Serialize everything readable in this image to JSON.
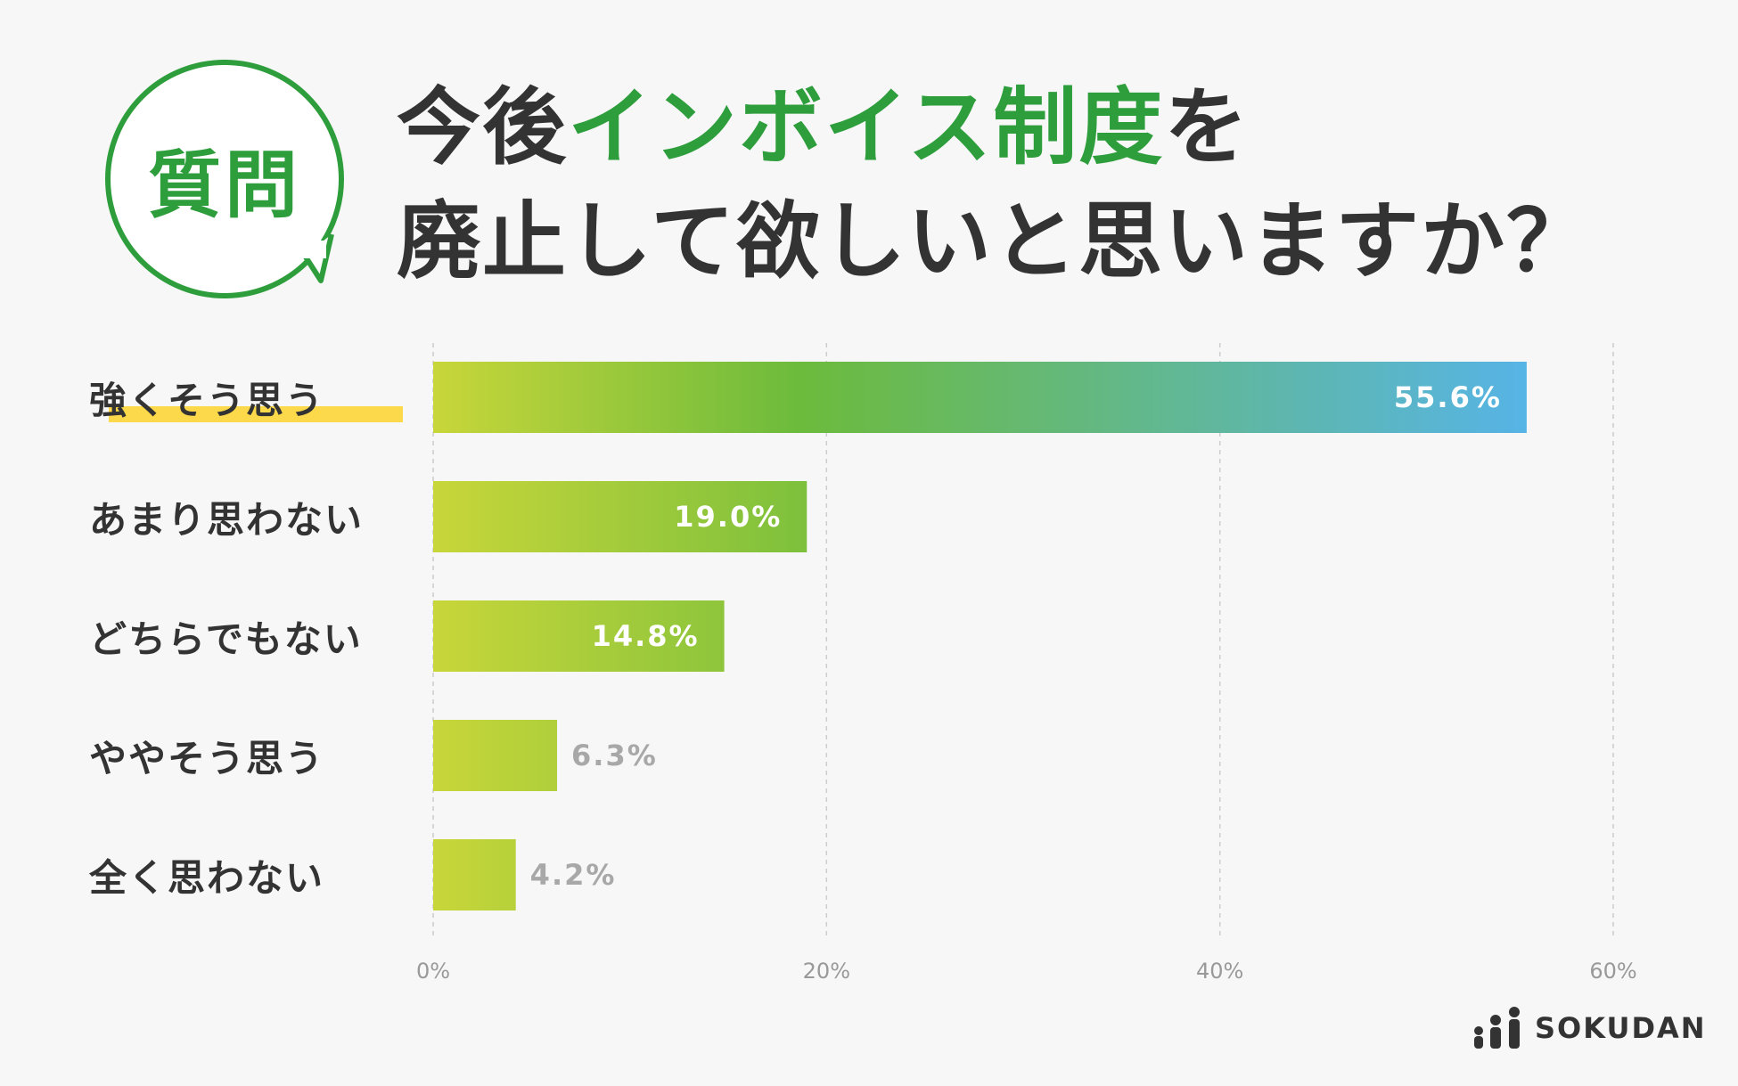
{
  "badge": {
    "label": "質問"
  },
  "title": {
    "line1_pre": "今後",
    "line1_highlight": "インボイス制度",
    "line1_post": "を",
    "line2": "廃止して欲しいと思いますか？"
  },
  "colors": {
    "accent_green": "#2e9e3c",
    "highlight_yellow": "#fbd94a",
    "bar_start": "#c8d63a",
    "bar_mid": "#6cbb3c",
    "bar_end": "#56b4ea"
  },
  "chart_data": {
    "type": "bar",
    "orientation": "horizontal",
    "categories": [
      "強くそう思う",
      "あまり思わない",
      "どちらでもない",
      "ややそう思う",
      "全く思わない"
    ],
    "values": [
      55.6,
      19.0,
      14.8,
      6.3,
      4.2
    ],
    "value_labels": [
      "55.6%",
      "19.0%",
      "14.8%",
      "6.3%",
      "4.2%"
    ],
    "xlim": [
      0,
      60
    ],
    "ticks": [
      0,
      20,
      40,
      60
    ],
    "tick_labels": [
      "0%",
      "20%",
      "40%",
      "60%"
    ],
    "grid": true,
    "highlighted_category": "強くそう思う"
  },
  "logo": {
    "text": "SOKUDAN",
    "icon": "sokudan-logo-icon"
  }
}
